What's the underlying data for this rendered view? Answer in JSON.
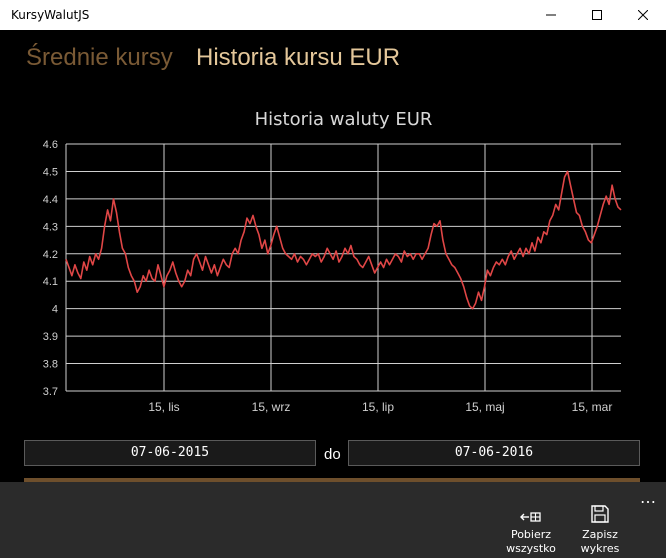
{
  "window": {
    "title": "KursyWalutJS"
  },
  "tabs": [
    {
      "label": "Średnie kursy"
    },
    {
      "label": "Historia kursu EUR"
    }
  ],
  "date_range": {
    "from": "07-06-2015",
    "separator": "do",
    "to": "07-06-2016"
  },
  "appbar": {
    "download_all": {
      "line1": "Pobierz",
      "line2": "wszystko",
      "icon": "download-all-icon"
    },
    "save_chart": {
      "line1": "Zapisz",
      "line2": "wykres",
      "icon": "floppy-disk-icon"
    },
    "more": "⋯"
  },
  "colors": {
    "series": "#e04646",
    "tab_inactive": "#7a5a35",
    "tab_active": "#e4c79a",
    "progress": "#6e4f2c"
  },
  "chart_data": {
    "type": "line",
    "title": "Historia waluty EUR",
    "ylim": [
      3.7,
      4.6
    ],
    "yticks": [
      "3.7",
      "3.8",
      "3.9",
      "4",
      "4.1",
      "4.2",
      "4.3",
      "4.4",
      "4.5",
      "4.6"
    ],
    "xticks": [
      "15, lis",
      "15, wrz",
      "15, lip",
      "15, maj",
      "15, mar"
    ],
    "grid": true,
    "series": [
      {
        "values": [
          4.18,
          4.15,
          4.12,
          4.16,
          4.13,
          4.11,
          4.17,
          4.14,
          4.19,
          4.16,
          4.2,
          4.18,
          4.22,
          4.3,
          4.36,
          4.32,
          4.4,
          4.35,
          4.28,
          4.22,
          4.2,
          4.15,
          4.12,
          4.1,
          4.06,
          4.08,
          4.12,
          4.1,
          4.14,
          4.11,
          4.1,
          4.16,
          4.12,
          4.08,
          4.12,
          4.14,
          4.17,
          4.13,
          4.1,
          4.08,
          4.1,
          4.14,
          4.12,
          4.18,
          4.2,
          4.17,
          4.14,
          4.19,
          4.16,
          4.13,
          4.16,
          4.12,
          4.15,
          4.18,
          4.16,
          4.15,
          4.2,
          4.22,
          4.2,
          4.25,
          4.28,
          4.33,
          4.31,
          4.34,
          4.3,
          4.27,
          4.22,
          4.25,
          4.2,
          4.23,
          4.27,
          4.3,
          4.26,
          4.22,
          4.2,
          4.19,
          4.18,
          4.2,
          4.17,
          4.19,
          4.18,
          4.16,
          4.18,
          4.2,
          4.19,
          4.2,
          4.17,
          4.19,
          4.22,
          4.2,
          4.18,
          4.21,
          4.17,
          4.19,
          4.22,
          4.2,
          4.23,
          4.19,
          4.18,
          4.16,
          4.15,
          4.17,
          4.19,
          4.16,
          4.13,
          4.15,
          4.17,
          4.15,
          4.18,
          4.16,
          4.18,
          4.2,
          4.19,
          4.17,
          4.21,
          4.19,
          4.2,
          4.18,
          4.2,
          4.2,
          4.18,
          4.2,
          4.22,
          4.27,
          4.31,
          4.3,
          4.32,
          4.25,
          4.2,
          4.18,
          4.16,
          4.15,
          4.13,
          4.11,
          4.08,
          4.04,
          4.01,
          4.0,
          4.02,
          4.06,
          4.03,
          4.08,
          4.14,
          4.12,
          4.15,
          4.17,
          4.16,
          4.18,
          4.16,
          4.19,
          4.21,
          4.18,
          4.2,
          4.22,
          4.19,
          4.22,
          4.2,
          4.24,
          4.21,
          4.26,
          4.24,
          4.28,
          4.27,
          4.32,
          4.34,
          4.38,
          4.36,
          4.42,
          4.48,
          4.5,
          4.45,
          4.4,
          4.35,
          4.34,
          4.3,
          4.28,
          4.25,
          4.24,
          4.27,
          4.3,
          4.34,
          4.38,
          4.41,
          4.38,
          4.45,
          4.4,
          4.37,
          4.36
        ]
      }
    ]
  }
}
